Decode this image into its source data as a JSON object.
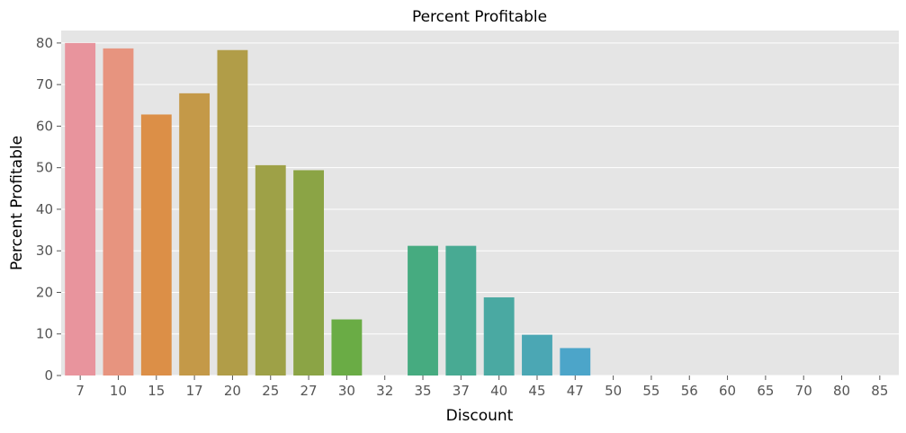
{
  "chart_data": {
    "type": "bar",
    "title": "Percent Profitable",
    "xlabel": "Discount",
    "ylabel": "Percent Profitable",
    "categories": [
      "7",
      "10",
      "15",
      "17",
      "20",
      "25",
      "27",
      "30",
      "32",
      "35",
      "37",
      "40",
      "45",
      "47",
      "50",
      "55",
      "56",
      "60",
      "65",
      "70",
      "80",
      "85"
    ],
    "values": [
      80.0,
      78.7,
      62.8,
      67.9,
      78.3,
      50.6,
      49.4,
      13.5,
      0,
      31.2,
      31.2,
      18.8,
      9.8,
      6.6,
      0,
      0,
      0,
      0,
      0,
      0,
      0,
      0
    ],
    "colors": [
      "#e8949d",
      "#e7947f",
      "#dc8f47",
      "#c49948",
      "#b19d48",
      "#9ea147",
      "#8ba445",
      "#6aac45",
      "#47ac6d",
      "#46ab80",
      "#48aa93",
      "#4aa9a2",
      "#4ba7b4",
      "#4ca5c9",
      "#6d9ee6",
      "#a493ee",
      "#c68aed",
      "#de80ea",
      "#e884d7",
      "#e887c4",
      "#e889b3",
      "#e88ca7"
    ],
    "ylim": [
      0,
      83
    ],
    "yticks": [
      0,
      10,
      20,
      30,
      40,
      50,
      60,
      70,
      80
    ],
    "grid": true,
    "background": "#e5e5e5",
    "grid_color": "#ffffff"
  }
}
